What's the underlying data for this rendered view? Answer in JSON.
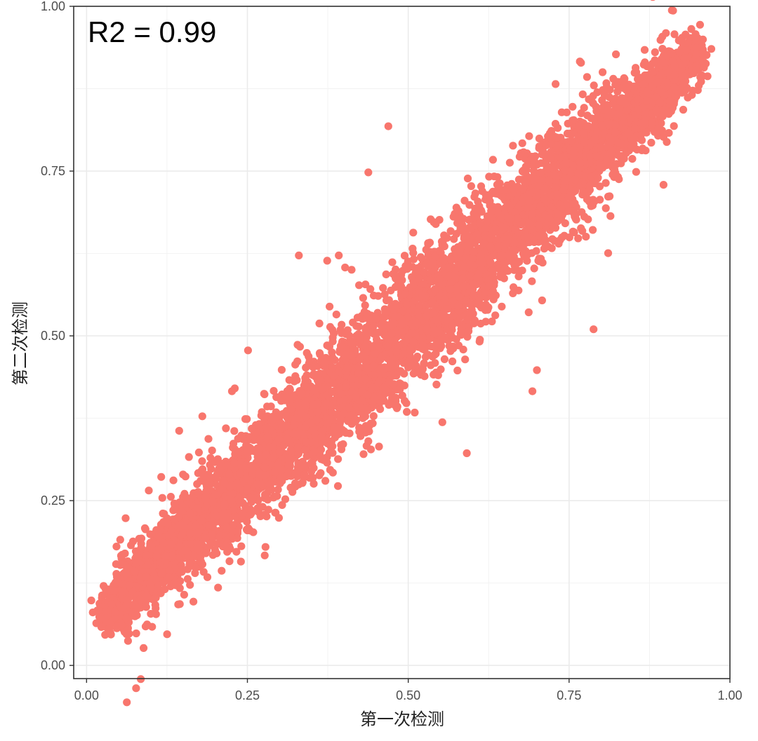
{
  "chart_data": {
    "type": "scatter",
    "title": "",
    "xlabel": "第一次检测",
    "ylabel": "第二次检测",
    "xlim": [
      -0.02,
      1.0
    ],
    "ylim": [
      -0.02,
      1.0
    ],
    "x_ticks": [
      0.0,
      0.25,
      0.5,
      0.75,
      1.0
    ],
    "y_ticks": [
      0.0,
      0.25,
      0.5,
      0.75,
      1.0
    ],
    "x_tick_labels": [
      "0.00",
      "0.25",
      "0.50",
      "0.75",
      "1.00"
    ],
    "y_tick_labels": [
      "0.00",
      "0.25",
      "0.50",
      "0.75",
      "1.00"
    ],
    "annotation": "R2 = 0.99",
    "grid": true,
    "legend": "none",
    "point_color": "#F8766D",
    "trend": {
      "x_range": [
        0.03,
        0.95
      ],
      "y_at_min_x": 0.08,
      "y_at_max_x": 0.93,
      "description_points": "dense cloud of several thousand points along y ≈ x"
    },
    "outliers": [
      {
        "x": 0.469,
        "y": 0.818
      },
      {
        "x": 0.438,
        "y": 0.748
      },
      {
        "x": 0.729,
        "y": 0.882
      },
      {
        "x": 0.788,
        "y": 0.51
      },
      {
        "x": 0.591,
        "y": 0.322
      },
      {
        "x": 0.251,
        "y": 0.478
      },
      {
        "x": 0.226,
        "y": 0.416
      },
      {
        "x": 0.33,
        "y": 0.622
      },
      {
        "x": 0.392,
        "y": 0.622
      },
      {
        "x": 0.374,
        "y": 0.614
      },
      {
        "x": 0.553,
        "y": 0.369
      },
      {
        "x": 0.18,
        "y": 0.378
      },
      {
        "x": 0.144,
        "y": 0.356
      },
      {
        "x": 0.116,
        "y": 0.286
      },
      {
        "x": 0.61,
        "y": 0.552
      },
      {
        "x": 0.693,
        "y": 0.416
      },
      {
        "x": 0.7,
        "y": 0.448
      }
    ]
  }
}
